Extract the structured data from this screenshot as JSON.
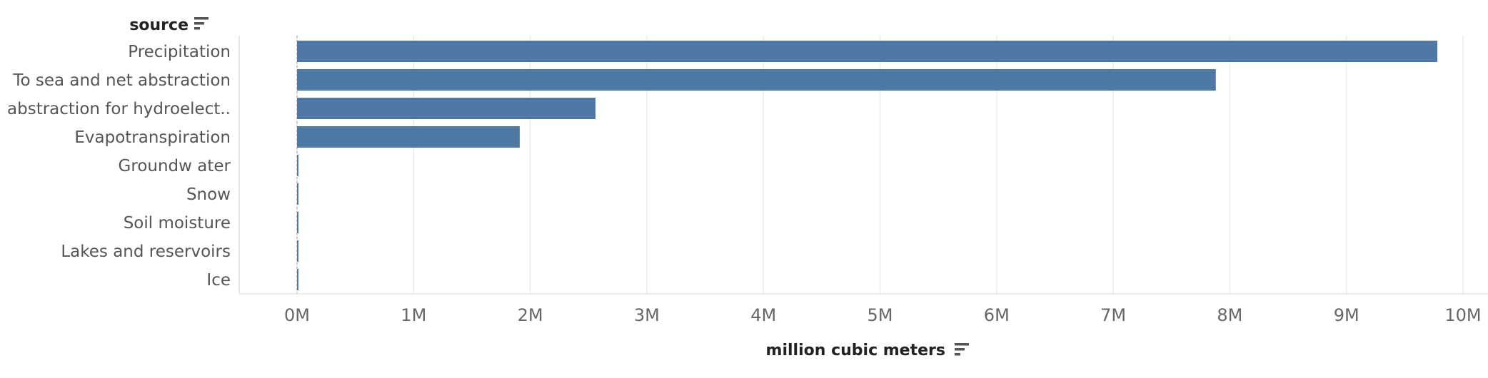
{
  "chart_data": {
    "type": "bar",
    "orientation": "horizontal",
    "ylabel": "source",
    "xlabel": "million cubic meters",
    "categories": [
      "Precipitation",
      "To sea and net abstraction",
      "abstraction for hydroelect..",
      "Evapotranspiration",
      "Groundw ater",
      "Snow",
      "Soil moisture",
      "Lakes and reservoirs",
      "Ice"
    ],
    "values": [
      9780000,
      7880000,
      2560000,
      1910000,
      8000,
      6000,
      5000,
      4000,
      2000
    ],
    "xlim": [
      -500000,
      10000000
    ],
    "xticks": [
      0,
      1000000,
      2000000,
      3000000,
      4000000,
      5000000,
      6000000,
      7000000,
      8000000,
      9000000,
      10000000
    ],
    "xtick_labels": [
      "0M",
      "1M",
      "2M",
      "3M",
      "4M",
      "5M",
      "6M",
      "7M",
      "8M",
      "9M",
      "10M"
    ],
    "grid": "vertical",
    "bar_color": "#4e79a7"
  },
  "icons": {
    "y_sort": "sort-descending-icon",
    "x_sort": "sort-descending-icon"
  }
}
